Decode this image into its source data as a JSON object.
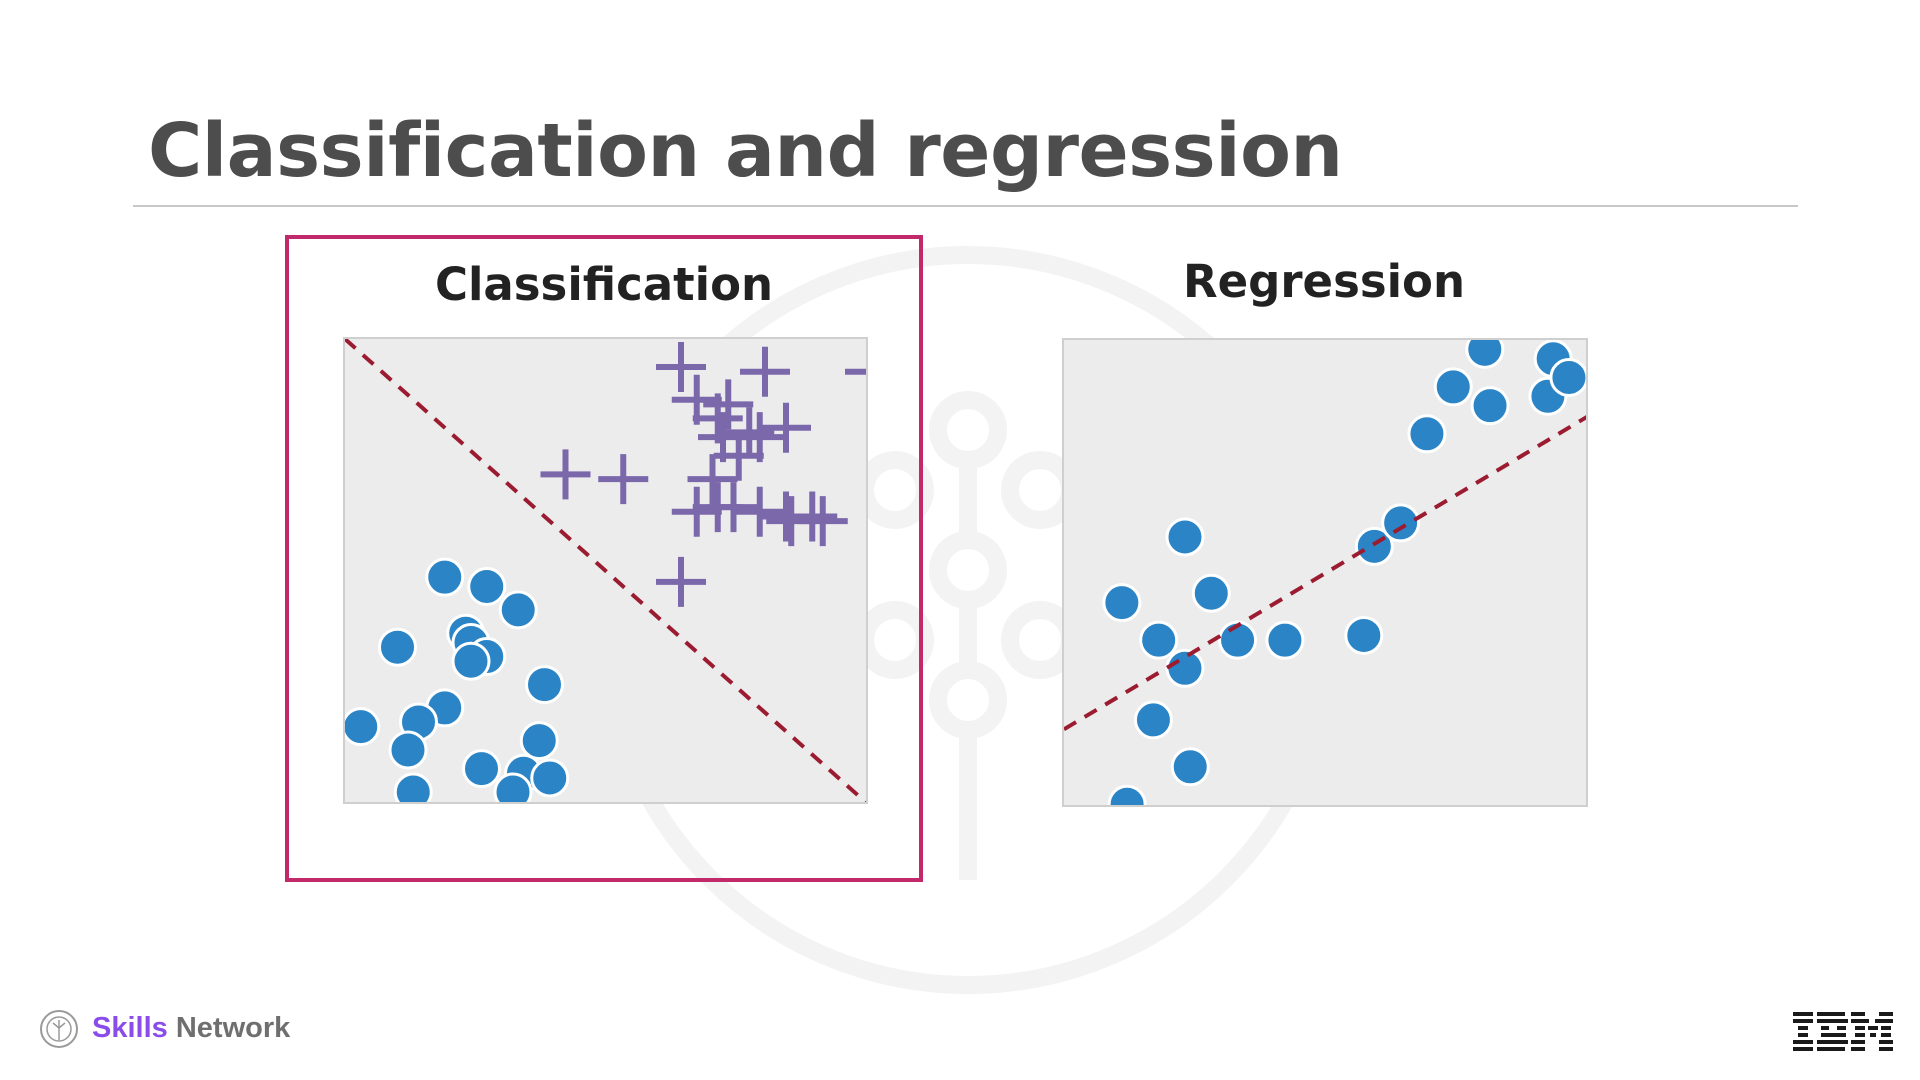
{
  "slide": {
    "title": "Classification and regression"
  },
  "classification": {
    "title": "Classification",
    "highlight_color": "#c2296b",
    "chart_data": {
      "type": "scatter",
      "title": "Classification",
      "boundary": "dashed diagonal line separating two classes",
      "series": [
        {
          "marker": "plus",
          "color": "#7b68ab",
          "points": [
            [
              0.64,
              0.94
            ],
            [
              0.8,
              0.93
            ],
            [
              1.0,
              0.93
            ],
            [
              0.67,
              0.87
            ],
            [
              0.73,
              0.86
            ],
            [
              0.71,
              0.83
            ],
            [
              0.77,
              0.8
            ],
            [
              0.84,
              0.81
            ],
            [
              0.72,
              0.79
            ],
            [
              0.79,
              0.79
            ],
            [
              0.42,
              0.71
            ],
            [
              0.53,
              0.7
            ],
            [
              0.67,
              0.63
            ],
            [
              0.71,
              0.64
            ],
            [
              0.74,
              0.64
            ],
            [
              0.79,
              0.63
            ],
            [
              0.84,
              0.62
            ],
            [
              0.85,
              0.61
            ],
            [
              0.89,
              0.62
            ],
            [
              0.91,
              0.61
            ],
            [
              0.64,
              0.48
            ],
            [
              0.75,
              0.75
            ],
            [
              0.7,
              0.7
            ]
          ]
        },
        {
          "marker": "circle",
          "color": "#2a84c6",
          "points": [
            [
              0.19,
              0.49
            ],
            [
              0.27,
              0.47
            ],
            [
              0.33,
              0.42
            ],
            [
              0.1,
              0.34
            ],
            [
              0.23,
              0.37
            ],
            [
              0.24,
              0.35
            ],
            [
              0.27,
              0.32
            ],
            [
              0.24,
              0.31
            ],
            [
              0.38,
              0.26
            ],
            [
              0.19,
              0.21
            ],
            [
              0.14,
              0.18
            ],
            [
              0.03,
              0.17
            ],
            [
              0.12,
              0.12
            ],
            [
              0.37,
              0.14
            ],
            [
              0.26,
              0.08
            ],
            [
              0.34,
              0.07
            ],
            [
              0.39,
              0.06
            ],
            [
              0.13,
              0.03
            ],
            [
              0.32,
              0.03
            ]
          ]
        }
      ]
    }
  },
  "regression": {
    "title": "Regression",
    "chart_data": {
      "type": "scatter",
      "title": "Regression",
      "trend_line": "dashed red line of best fit",
      "series": [
        {
          "marker": "circle",
          "color": "#2a84c6",
          "points": [
            [
              0.12,
              0.01
            ],
            [
              0.17,
              0.19
            ],
            [
              0.24,
              0.09
            ],
            [
              0.23,
              0.3
            ],
            [
              0.18,
              0.36
            ],
            [
              0.11,
              0.44
            ],
            [
              0.23,
              0.58
            ],
            [
              0.28,
              0.46
            ],
            [
              0.33,
              0.36
            ],
            [
              0.42,
              0.36
            ],
            [
              0.57,
              0.37
            ],
            [
              0.59,
              0.56
            ],
            [
              0.64,
              0.61
            ],
            [
              0.69,
              0.8
            ],
            [
              0.74,
              0.9
            ],
            [
              0.81,
              0.86
            ],
            [
              0.8,
              0.98
            ],
            [
              0.92,
              0.88
            ],
            [
              0.93,
              0.96
            ],
            [
              0.96,
              0.92
            ]
          ]
        }
      ],
      "trend": {
        "x1": 0.0,
        "y1": 0.17,
        "x2": 1.0,
        "y2": 0.84
      }
    }
  },
  "footer": {
    "brand_part1": "Skills",
    "brand_part2": "Network",
    "logo_icon": "skills-network-logo",
    "company_logo_text": "IBM"
  },
  "colors": {
    "title": "#4d4d4d",
    "divider": "#dd1144",
    "plus": "#7b68ab",
    "circle": "#2a84c6",
    "trend": "#9b1b30"
  }
}
